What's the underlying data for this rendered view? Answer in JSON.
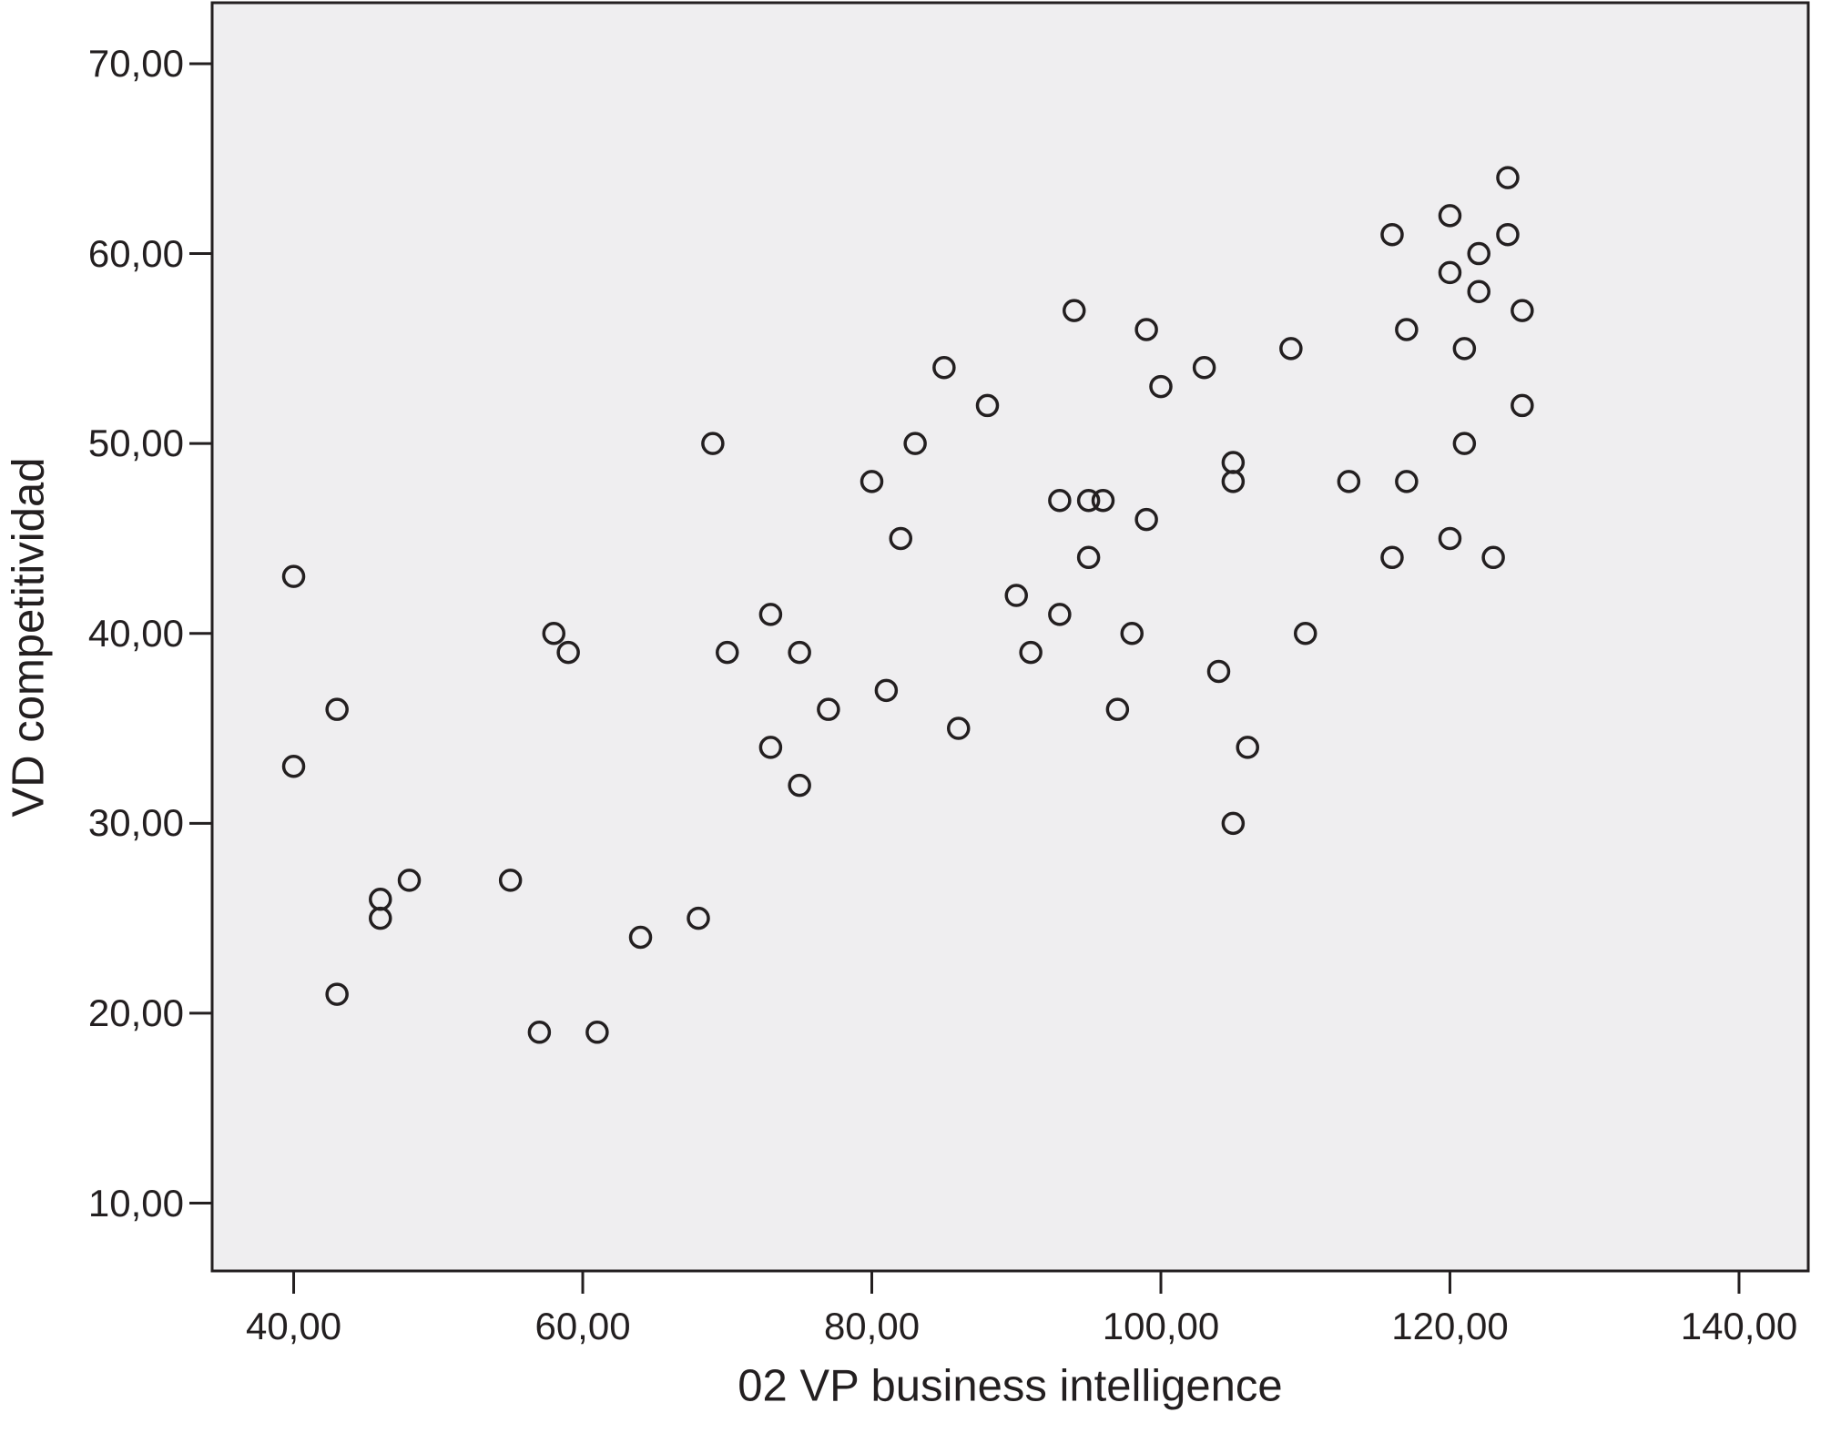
{
  "chart_data": {
    "type": "scatter",
    "title": "",
    "xlabel": "02 VP business intelligence",
    "ylabel": "VD competitividad",
    "x_ticks": [
      {
        "value": 40,
        "label": "40,00"
      },
      {
        "value": 60,
        "label": "60,00"
      },
      {
        "value": 80,
        "label": "80,00"
      },
      {
        "value": 100,
        "label": "100,00"
      },
      {
        "value": 120,
        "label": "120,00"
      },
      {
        "value": 140,
        "label": "140,00"
      }
    ],
    "y_ticks": [
      {
        "value": 10,
        "label": "10,00"
      },
      {
        "value": 20,
        "label": "20,00"
      },
      {
        "value": 30,
        "label": "30,00"
      },
      {
        "value": 40,
        "label": "40,00"
      },
      {
        "value": 50,
        "label": "50,00"
      },
      {
        "value": 60,
        "label": "60,00"
      },
      {
        "value": 70,
        "label": "70,00"
      }
    ],
    "xlim": [
      34.36,
      144.79
    ],
    "ylim": [
      6.43,
      73.21
    ],
    "grid": false,
    "legend_position": null,
    "marker": {
      "shape": "open-circle",
      "radius": 11,
      "stroke_width": 3.5
    },
    "colors": {
      "plot_background": "#efeef0",
      "frame": "#231f20",
      "marker": "#231f20",
      "text": "#231f20",
      "page_background": "#ffffff"
    },
    "points": [
      [
        40,
        43
      ],
      [
        40,
        33
      ],
      [
        43,
        36
      ],
      [
        43,
        21
      ],
      [
        46,
        26
      ],
      [
        46,
        25
      ],
      [
        48,
        27
      ],
      [
        55,
        27
      ],
      [
        57,
        19
      ],
      [
        58,
        40
      ],
      [
        59,
        39
      ],
      [
        61,
        19
      ],
      [
        64,
        24
      ],
      [
        68,
        25
      ],
      [
        69,
        50
      ],
      [
        70,
        39
      ],
      [
        73,
        41
      ],
      [
        73,
        34
      ],
      [
        75,
        39
      ],
      [
        75,
        32
      ],
      [
        77,
        36
      ],
      [
        80,
        48
      ],
      [
        81,
        37
      ],
      [
        82,
        45
      ],
      [
        83,
        50
      ],
      [
        85,
        54
      ],
      [
        86,
        35
      ],
      [
        88,
        52
      ],
      [
        90,
        42
      ],
      [
        91,
        39
      ],
      [
        93,
        47
      ],
      [
        93,
        41
      ],
      [
        94,
        57
      ],
      [
        95,
        47
      ],
      [
        95,
        44
      ],
      [
        96,
        47
      ],
      [
        97,
        36
      ],
      [
        98,
        40
      ],
      [
        99,
        56
      ],
      [
        99,
        46
      ],
      [
        100,
        53
      ],
      [
        103,
        54
      ],
      [
        104,
        38
      ],
      [
        105,
        49
      ],
      [
        105,
        48
      ],
      [
        105,
        30
      ],
      [
        106,
        34
      ],
      [
        109,
        55
      ],
      [
        110,
        40
      ],
      [
        113,
        48
      ],
      [
        116,
        61
      ],
      [
        116,
        44
      ],
      [
        117,
        56
      ],
      [
        117,
        48
      ],
      [
        120,
        62
      ],
      [
        120,
        59
      ],
      [
        120,
        45
      ],
      [
        121,
        55
      ],
      [
        121,
        50
      ],
      [
        122,
        60
      ],
      [
        122,
        58
      ],
      [
        123,
        44
      ],
      [
        124,
        64
      ],
      [
        124,
        61
      ],
      [
        125,
        57
      ],
      [
        125,
        52
      ]
    ]
  },
  "layout_note": "SPSS-style scatterplot"
}
